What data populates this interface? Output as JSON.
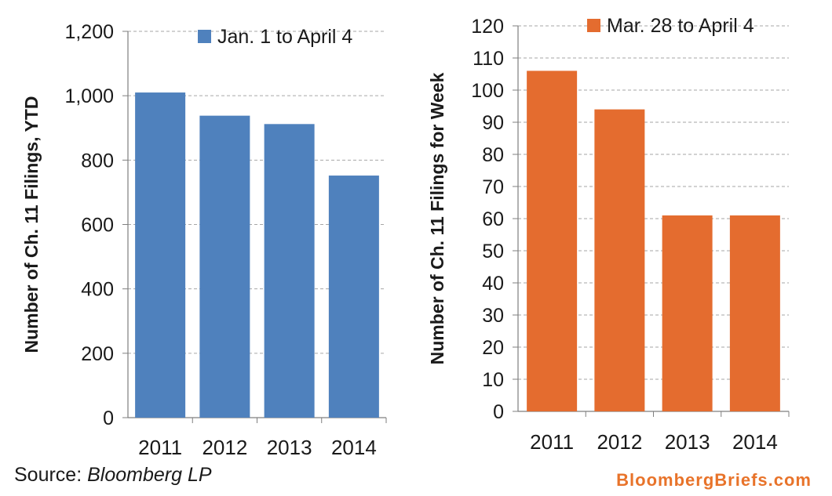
{
  "chart_data": [
    {
      "type": "bar",
      "categories": [
        "2011",
        "2012",
        "2013",
        "2014"
      ],
      "series": [
        {
          "name": "Jan. 1 to April 4",
          "values": [
            1010,
            938,
            912,
            752
          ],
          "color": "#4f81bd"
        }
      ],
      "ylabel": "Number of Ch. 11 Filings, YTD",
      "ylim": [
        0,
        1200
      ],
      "yticks": [
        0,
        200,
        400,
        600,
        800,
        1000,
        1200
      ],
      "ytick_labels": [
        "0",
        "200",
        "400",
        "600",
        "800",
        "1,000",
        "1,200"
      ],
      "grid": true,
      "legend": "top-right"
    },
    {
      "type": "bar",
      "categories": [
        "2011",
        "2012",
        "2013",
        "2014"
      ],
      "series": [
        {
          "name": "Mar. 28  to April 4",
          "values": [
            106,
            94,
            61,
            61
          ],
          "color": "#e46c2f"
        }
      ],
      "ylabel": "Number of Ch. 11 Filings for Week",
      "ylim": [
        0,
        120
      ],
      "yticks": [
        0,
        10,
        20,
        30,
        40,
        50,
        60,
        70,
        80,
        90,
        100,
        110,
        120
      ],
      "ytick_labels": [
        "0",
        "10",
        "20",
        "30",
        "40",
        "50",
        "60",
        "70",
        "80",
        "90",
        "100",
        "110",
        "120"
      ],
      "grid": true,
      "legend": "top-right"
    }
  ],
  "footer": {
    "source_prefix": "Source: ",
    "source_name": "Bloomberg LP",
    "brand": "BloombergBriefs.com"
  }
}
